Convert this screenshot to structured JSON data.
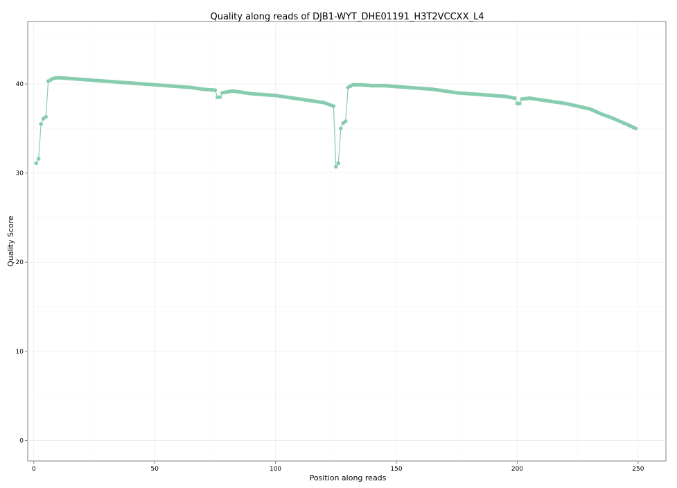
{
  "chart_data": {
    "type": "line",
    "title": "Quality along reads of DJB1-WYT_DHE01191_H3T2VCCXX_L4",
    "xlabel": "Position along reads",
    "ylabel": "Quality Score",
    "xlim": [
      -2.5,
      261.5
    ],
    "ylim": [
      -2.3,
      47
    ],
    "x_ticks": [
      0,
      50,
      100,
      150,
      200,
      250
    ],
    "y_ticks": [
      0,
      10,
      20,
      30,
      40
    ],
    "grid": true,
    "legend": "none",
    "series": [
      {
        "color": "#88ccb0",
        "points": [
          [
            1,
            31.1
          ],
          [
            2,
            31.6
          ],
          [
            3,
            35.5
          ],
          [
            4,
            36.1
          ],
          [
            5,
            36.3
          ],
          [
            6,
            40.3
          ],
          [
            8,
            40.6
          ],
          [
            10,
            40.7
          ],
          [
            15,
            40.6
          ],
          [
            20,
            40.5
          ],
          [
            25,
            40.4
          ],
          [
            30,
            40.3
          ],
          [
            35,
            40.2
          ],
          [
            40,
            40.1
          ],
          [
            45,
            40.0
          ],
          [
            50,
            39.9
          ],
          [
            55,
            39.8
          ],
          [
            60,
            39.7
          ],
          [
            65,
            39.6
          ],
          [
            70,
            39.4
          ],
          [
            75,
            39.3
          ],
          [
            76,
            38.5
          ],
          [
            77,
            38.5
          ],
          [
            78,
            39.0
          ],
          [
            80,
            39.1
          ],
          [
            82,
            39.2
          ],
          [
            85,
            39.1
          ],
          [
            90,
            38.9
          ],
          [
            95,
            38.8
          ],
          [
            100,
            38.7
          ],
          [
            105,
            38.5
          ],
          [
            110,
            38.3
          ],
          [
            115,
            38.1
          ],
          [
            120,
            37.9
          ],
          [
            123,
            37.6
          ],
          [
            124,
            37.5
          ],
          [
            125,
            30.7
          ],
          [
            126,
            31.1
          ],
          [
            127,
            35.0
          ],
          [
            128,
            35.6
          ],
          [
            129,
            35.8
          ],
          [
            130,
            39.6
          ],
          [
            132,
            39.9
          ],
          [
            135,
            39.9
          ],
          [
            140,
            39.8
          ],
          [
            145,
            39.8
          ],
          [
            150,
            39.7
          ],
          [
            155,
            39.6
          ],
          [
            160,
            39.5
          ],
          [
            165,
            39.4
          ],
          [
            170,
            39.2
          ],
          [
            175,
            39.0
          ],
          [
            180,
            38.9
          ],
          [
            185,
            38.8
          ],
          [
            190,
            38.7
          ],
          [
            195,
            38.6
          ],
          [
            199,
            38.4
          ],
          [
            200,
            37.8
          ],
          [
            201,
            37.8
          ],
          [
            202,
            38.3
          ],
          [
            205,
            38.4
          ],
          [
            210,
            38.2
          ],
          [
            215,
            38.0
          ],
          [
            220,
            37.8
          ],
          [
            225,
            37.5
          ],
          [
            230,
            37.2
          ],
          [
            235,
            36.6
          ],
          [
            240,
            36.1
          ],
          [
            245,
            35.5
          ],
          [
            249,
            35.0
          ]
        ]
      }
    ]
  }
}
